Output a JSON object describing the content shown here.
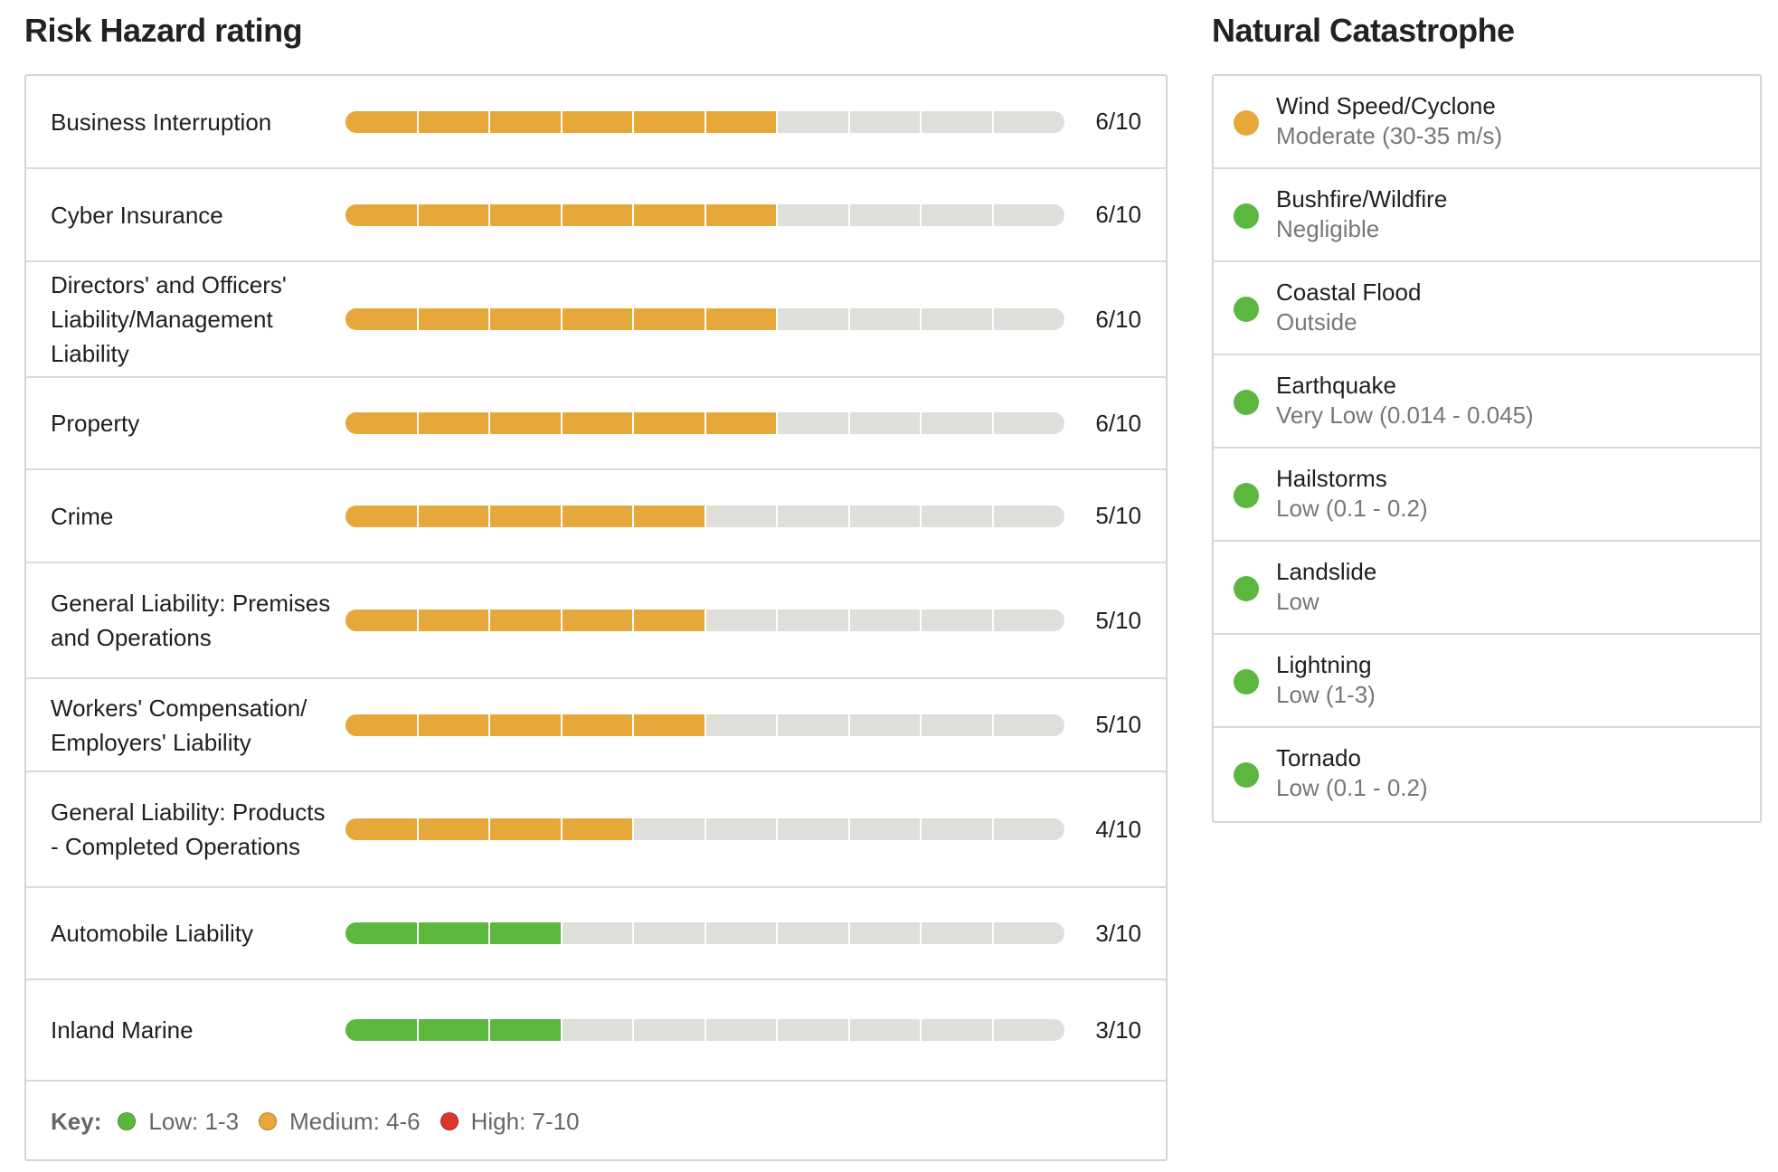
{
  "risk_section": {
    "title": "Risk Hazard rating",
    "max_score": 10,
    "rows": [
      {
        "label": "Business Interruption",
        "score": 6,
        "score_text": "6/10",
        "level": "medium"
      },
      {
        "label": "Cyber Insurance",
        "score": 6,
        "score_text": "6/10",
        "level": "medium"
      },
      {
        "label": "Directors' and Officers' Liability/Management Liability",
        "score": 6,
        "score_text": "6/10",
        "level": "medium"
      },
      {
        "label": "Property",
        "score": 6,
        "score_text": "6/10",
        "level": "medium"
      },
      {
        "label": "Crime",
        "score": 5,
        "score_text": "5/10",
        "level": "medium"
      },
      {
        "label": "General Liability: Premises and Operations",
        "score": 5,
        "score_text": "5/10",
        "level": "medium"
      },
      {
        "label": "Workers' Compensation/ Employers' Liability",
        "score": 5,
        "score_text": "5/10",
        "level": "medium"
      },
      {
        "label": "General Liability: Products - Completed Operations",
        "score": 4,
        "score_text": "4/10",
        "level": "medium"
      },
      {
        "label": "Automobile Liability",
        "score": 3,
        "score_text": "3/10",
        "level": "low"
      },
      {
        "label": "Inland Marine",
        "score": 3,
        "score_text": "3/10",
        "level": "low"
      }
    ],
    "key": {
      "title": "Key:",
      "items": [
        {
          "label": "Low: 1-3",
          "level": "low"
        },
        {
          "label": "Medium: 4-6",
          "level": "medium"
        },
        {
          "label": "High: 7-10",
          "level": "high"
        }
      ]
    }
  },
  "colors": {
    "low": "#5cb73e",
    "medium": "#e6a83a",
    "high": "#d9372b",
    "track": "#dededa"
  },
  "catastrophe_section": {
    "title": "Natural Catastrophe",
    "items": [
      {
        "name": "Wind Speed/Cyclone",
        "value": "Moderate (30-35 m/s)",
        "level": "medium"
      },
      {
        "name": "Bushfire/Wildfire",
        "value": "Negligible",
        "level": "low"
      },
      {
        "name": "Coastal Flood",
        "value": "Outside",
        "level": "low"
      },
      {
        "name": "Earthquake",
        "value": "Very Low (0.014 - 0.045)",
        "level": "low"
      },
      {
        "name": "Hailstorms",
        "value": "Low (0.1 - 0.2)",
        "level": "low"
      },
      {
        "name": "Landslide",
        "value": "Low",
        "level": "low"
      },
      {
        "name": "Lightning",
        "value": "Low (1-3)",
        "level": "low"
      },
      {
        "name": "Tornado",
        "value": "Low (0.1 - 0.2)",
        "level": "low"
      }
    ]
  }
}
